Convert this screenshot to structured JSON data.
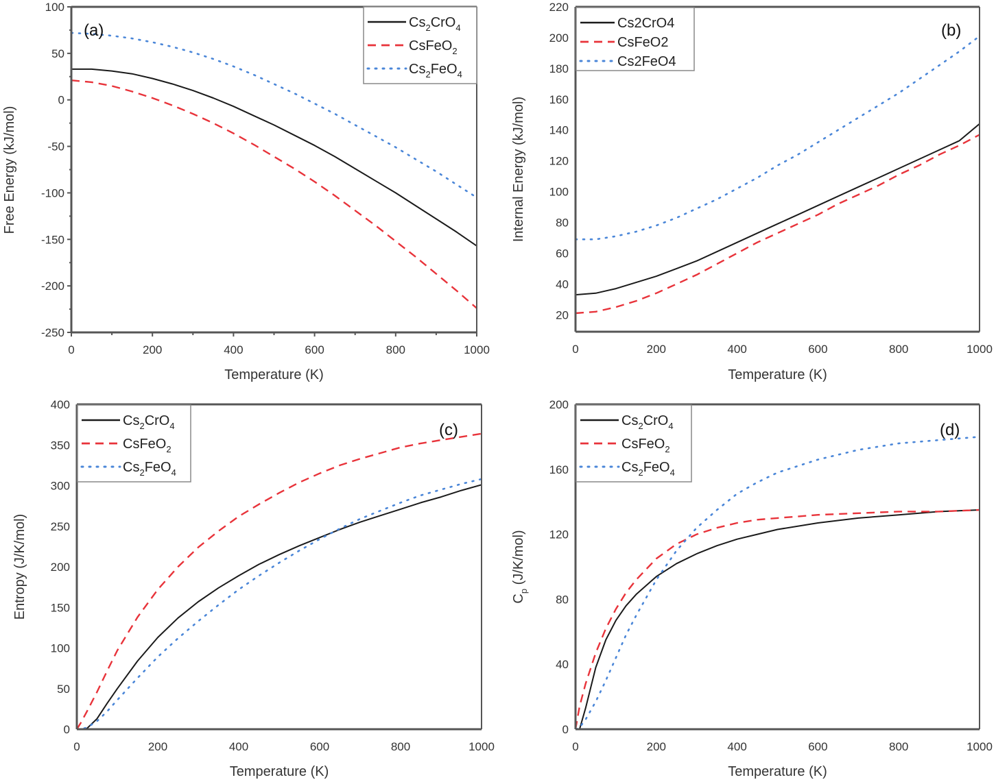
{
  "colors": {
    "Cs2CrO4": "#1a1a1a",
    "CsFeO2": "#e8333a",
    "Cs2FeO4": "#4a86d8",
    "axis": "#555555"
  },
  "chart_data": [
    {
      "id": "a",
      "type": "line",
      "panel_label": "(a)",
      "title": "",
      "xlabel": "Temperature (K)",
      "ylabel": "Free Energy (kJ/mol)",
      "xlim": [
        0,
        1000
      ],
      "ylim": [
        -250,
        100
      ],
      "xticks": [
        0,
        200,
        400,
        600,
        800,
        1000
      ],
      "yticks": [
        -250,
        -200,
        -150,
        -100,
        -50,
        0,
        50,
        100
      ],
      "grid": false,
      "legend_position": "top-right",
      "legend_style": "subscript",
      "x": [
        0,
        50,
        100,
        150,
        200,
        250,
        300,
        350,
        400,
        450,
        500,
        550,
        600,
        650,
        700,
        750,
        800,
        850,
        900,
        950,
        1000
      ],
      "series": [
        {
          "name": "Cs2CrO4",
          "legend": [
            "Cs",
            "2",
            "CrO",
            "4"
          ],
          "style": "solid",
          "values": [
            33,
            33,
            31,
            28,
            23,
            17,
            10,
            2,
            -7,
            -17,
            -27,
            -38,
            -49,
            -61,
            -74,
            -87,
            -100,
            -114,
            -128,
            -142,
            -157
          ]
        },
        {
          "name": "CsFeO2",
          "legend": [
            "CsFeO",
            "2"
          ],
          "style": "dashed",
          "values": [
            21,
            19,
            15,
            9,
            2,
            -6,
            -15,
            -25,
            -36,
            -48,
            -61,
            -74,
            -88,
            -103,
            -119,
            -135,
            -152,
            -169,
            -187,
            -205,
            -224
          ]
        },
        {
          "name": "Cs2FeO4",
          "legend": [
            "Cs",
            "2",
            "FeO",
            "4"
          ],
          "style": "dotted",
          "values": [
            72,
            71,
            69,
            66,
            62,
            57,
            51,
            44,
            36,
            27,
            17,
            7,
            -4,
            -15,
            -27,
            -39,
            -51,
            -64,
            -77,
            -91,
            -105
          ]
        }
      ]
    },
    {
      "id": "b",
      "type": "line",
      "panel_label": "(b)",
      "title": "",
      "xlabel": "Temperature (K)",
      "ylabel": "Internal Energy (kJ/mol)",
      "xlim": [
        0,
        1000
      ],
      "ylim": [
        9,
        220
      ],
      "xticks": [
        0,
        200,
        400,
        600,
        800,
        1000
      ],
      "yticks": [
        20,
        40,
        60,
        80,
        100,
        120,
        140,
        160,
        180,
        200,
        220
      ],
      "grid": false,
      "legend_position": "top-left",
      "legend_style": "plain",
      "x": [
        0,
        50,
        100,
        150,
        200,
        250,
        300,
        350,
        400,
        450,
        500,
        550,
        600,
        650,
        700,
        750,
        800,
        850,
        900,
        950,
        1000
      ],
      "series": [
        {
          "name": "Cs2CrO4",
          "legend": [
            "Cs2CrO4"
          ],
          "style": "solid",
          "values": [
            33,
            34,
            37,
            41,
            45,
            50,
            55,
            61,
            67,
            73,
            79,
            85,
            91,
            97,
            103,
            109,
            115,
            121,
            127,
            133,
            144
          ]
        },
        {
          "name": "CsFeO2",
          "legend": [
            "CsFeO2"
          ],
          "style": "dashed",
          "values": [
            21,
            22,
            25,
            29,
            34,
            40,
            46,
            53,
            60,
            67,
            73,
            79,
            85,
            92,
            98,
            104,
            111,
            117,
            124,
            130,
            137
          ]
        },
        {
          "name": "Cs2FeO4",
          "legend": [
            "Cs2FeO4"
          ],
          "style": "dotted",
          "values": [
            69,
            69,
            71,
            74,
            78,
            83,
            89,
            95,
            102,
            109,
            117,
            124,
            132,
            140,
            148,
            156,
            164,
            173,
            182,
            191,
            201
          ]
        }
      ]
    },
    {
      "id": "c",
      "type": "line",
      "panel_label": "(c)",
      "title": "",
      "xlabel": "Temperature (K)",
      "ylabel": "Entropy (J/K/mol)",
      "xlim": [
        0,
        1000
      ],
      "ylim": [
        0,
        400
      ],
      "xticks": [
        0,
        200,
        400,
        600,
        800,
        1000
      ],
      "yticks": [
        0,
        50,
        100,
        150,
        200,
        250,
        300,
        350,
        400
      ],
      "grid": false,
      "legend_position": "top-left",
      "legend_style": "subscript",
      "x": [
        0,
        10,
        25,
        50,
        75,
        100,
        150,
        200,
        250,
        300,
        350,
        400,
        450,
        500,
        550,
        600,
        650,
        700,
        750,
        800,
        850,
        900,
        950,
        1000
      ],
      "series": [
        {
          "name": "Cs2CrO4",
          "legend": [
            "Cs",
            "2",
            "CrO",
            "4"
          ],
          "style": "solid",
          "values": [
            0,
            0,
            1,
            13,
            32,
            50,
            84,
            113,
            137,
            157,
            174,
            189,
            203,
            215,
            226,
            236,
            246,
            255,
            263,
            271,
            279,
            286,
            294,
            301
          ]
        },
        {
          "name": "CsFeO2",
          "legend": [
            "CsFeO",
            "2"
          ],
          "style": "dashed",
          "values": [
            0,
            8,
            22,
            46,
            72,
            97,
            138,
            172,
            200,
            224,
            244,
            262,
            277,
            291,
            304,
            315,
            325,
            333,
            340,
            347,
            352,
            356,
            360,
            364
          ]
        },
        {
          "name": "Cs2FeO4",
          "legend": [
            "Cs",
            "2",
            "FeO",
            "4"
          ],
          "style": "dotted",
          "values": [
            0,
            0,
            2,
            10,
            22,
            36,
            63,
            89,
            112,
            133,
            153,
            172,
            189,
            205,
            220,
            234,
            247,
            259,
            269,
            279,
            288,
            295,
            302,
            308
          ]
        }
      ]
    },
    {
      "id": "d",
      "type": "line",
      "panel_label": "(d)",
      "title": "",
      "xlabel": "Temperature (K)",
      "ylabel": "Cp (J/K/mol)",
      "ylabel_parts": [
        "C",
        "p",
        " (J/K/mol)"
      ],
      "xlim": [
        0,
        1000
      ],
      "ylim": [
        0,
        200
      ],
      "xticks": [
        0,
        200,
        400,
        600,
        800,
        1000
      ],
      "yticks": [
        0,
        40,
        80,
        120,
        160,
        200
      ],
      "grid": false,
      "legend_position": "top-left",
      "legend_style": "subscript",
      "x": [
        0,
        10,
        25,
        50,
        75,
        100,
        125,
        150,
        200,
        250,
        300,
        350,
        400,
        450,
        500,
        600,
        700,
        800,
        900,
        1000
      ],
      "series": [
        {
          "name": "Cs2CrO4",
          "legend": [
            "Cs",
            "2",
            "CrO",
            "4"
          ],
          "style": "solid",
          "values": [
            0,
            0,
            13,
            38,
            55,
            67,
            76,
            83,
            94,
            102,
            108,
            113,
            117,
            120,
            123,
            127,
            130,
            132,
            134,
            135
          ]
        },
        {
          "name": "CsFeO2",
          "legend": [
            "CsFeO",
            "2"
          ],
          "style": "dashed",
          "values": [
            0,
            14,
            28,
            47,
            62,
            74,
            84,
            92,
            105,
            114,
            120,
            124,
            127,
            129,
            130,
            132,
            133,
            134,
            134,
            135
          ]
        },
        {
          "name": "Cs2FeO4",
          "legend": [
            "Cs",
            "2",
            "FeO",
            "4"
          ],
          "style": "dotted",
          "values": [
            0,
            1,
            6,
            17,
            30,
            44,
            58,
            70,
            92,
            110,
            124,
            135,
            145,
            152,
            158,
            166,
            172,
            176,
            178,
            180
          ]
        }
      ]
    }
  ]
}
